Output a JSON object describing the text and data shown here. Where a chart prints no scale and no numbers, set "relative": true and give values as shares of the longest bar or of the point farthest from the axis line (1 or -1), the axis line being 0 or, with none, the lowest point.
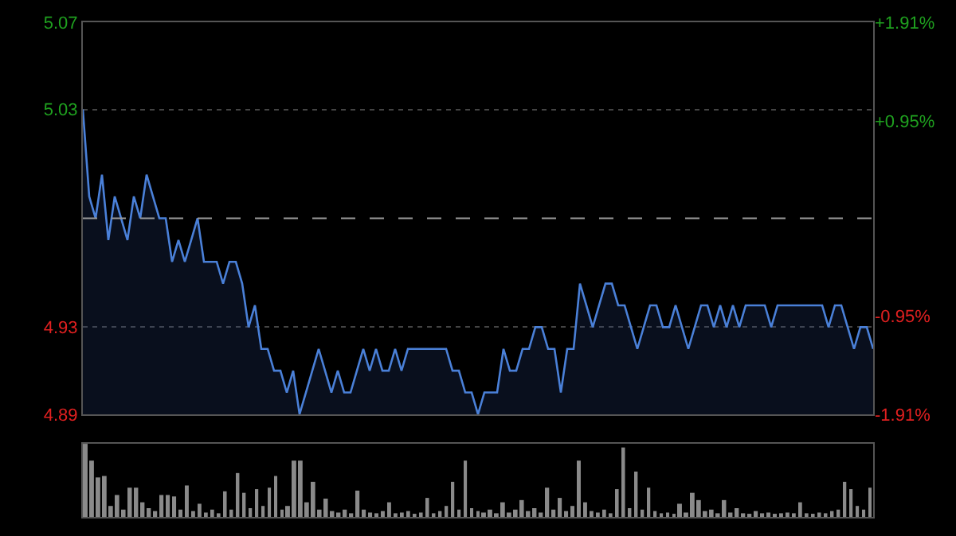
{
  "chart_data": [
    {
      "type": "area",
      "categories": [
        null,
        null,
        null,
        null,
        null,
        null,
        null,
        null,
        null,
        null,
        null,
        null,
        null,
        null,
        null,
        null,
        null,
        null,
        null,
        null,
        null,
        null,
        null,
        null,
        null,
        null,
        null,
        null,
        null,
        null,
        null,
        null,
        null,
        null,
        null,
        null,
        null,
        null,
        null,
        null,
        null,
        null,
        null,
        null,
        null,
        null,
        null,
        null,
        null,
        null,
        null,
        null,
        null,
        null,
        null,
        null,
        null,
        null,
        null,
        null,
        null,
        null,
        null,
        null,
        null,
        null,
        null,
        null,
        null,
        null,
        null,
        null,
        null,
        null,
        null,
        null,
        null,
        null,
        null,
        null,
        null,
        null,
        null,
        null,
        null,
        null,
        null,
        null,
        null,
        null,
        null,
        null,
        null,
        null,
        null,
        null,
        null,
        null,
        null,
        null,
        null,
        null,
        null,
        null,
        null,
        null,
        null,
        null,
        null,
        null,
        null,
        null,
        null,
        null,
        null,
        null,
        null,
        null,
        null,
        null,
        null,
        null,
        null,
        null,
        null
      ],
      "series": [
        {
          "color": "#4a80d8",
          "values": [
            5.03,
            4.99,
            4.98,
            5.0,
            4.97,
            4.99,
            4.98,
            4.97,
            4.99,
            4.98,
            5.0,
            4.99,
            4.98,
            4.98,
            4.96,
            4.97,
            4.96,
            4.97,
            4.98,
            4.96,
            4.96,
            4.96,
            4.95,
            4.96,
            4.96,
            4.95,
            4.93,
            4.94,
            4.92,
            4.92,
            4.91,
            4.91,
            4.9,
            4.91,
            4.89,
            4.9,
            4.91,
            4.92,
            4.91,
            4.9,
            4.91,
            4.9,
            4.9,
            4.91,
            4.92,
            4.91,
            4.92,
            4.91,
            4.91,
            4.92,
            4.91,
            4.92,
            4.92,
            4.92,
            4.92,
            4.92,
            4.92,
            4.92,
            4.91,
            4.91,
            4.9,
            4.9,
            4.89,
            4.9,
            4.9,
            4.9,
            4.92,
            4.91,
            4.91,
            4.92,
            4.92,
            4.93,
            4.93,
            4.92,
            4.92,
            4.9,
            4.92,
            4.92,
            4.95,
            4.94,
            4.93,
            4.94,
            4.95,
            4.95,
            4.94,
            4.94,
            4.93,
            4.92,
            4.93,
            4.94,
            4.94,
            4.93,
            4.93,
            4.94,
            4.93,
            4.92,
            4.93,
            4.94,
            4.94,
            4.93,
            4.94,
            4.93,
            4.94,
            4.93,
            4.94,
            4.94,
            4.94,
            4.94,
            4.93,
            4.94,
            4.94,
            4.94,
            4.94,
            4.94,
            4.94,
            4.94,
            4.94,
            4.93,
            4.94,
            4.94,
            4.93,
            4.92,
            4.93,
            4.93,
            4.92
          ]
        }
      ],
      "ylim": [
        4.89,
        5.07
      ],
      "yticks": [
        4.89,
        4.93,
        5.03,
        5.07
      ],
      "y2lim": [
        -1.91,
        1.91
      ],
      "y2ticks": [
        {
          "value": -1.91,
          "label": "-1.91%"
        },
        {
          "value": -0.95,
          "label": "-0.95%"
        },
        {
          "value": 0.95,
          "label": "+0.95%"
        },
        {
          "value": 1.91,
          "label": "+1.91%"
        }
      ],
      "ref_lines": [
        {
          "axis": "y",
          "value": 4.98,
          "color": "#9a9a9a",
          "line_style": "dashed"
        }
      ],
      "grid": "y",
      "legend": false
    },
    {
      "type": "bar",
      "relative": true,
      "categories": [
        null,
        null,
        null,
        null,
        null,
        null,
        null,
        null,
        null,
        null,
        null,
        null,
        null,
        null,
        null,
        null,
        null,
        null,
        null,
        null,
        null,
        null,
        null,
        null,
        null,
        null,
        null,
        null,
        null,
        null,
        null,
        null,
        null,
        null,
        null,
        null,
        null,
        null,
        null,
        null,
        null,
        null,
        null,
        null,
        null,
        null,
        null,
        null,
        null,
        null,
        null,
        null,
        null,
        null,
        null,
        null,
        null,
        null,
        null,
        null,
        null,
        null,
        null,
        null,
        null,
        null,
        null,
        null,
        null,
        null,
        null,
        null,
        null,
        null,
        null,
        null,
        null,
        null,
        null,
        null,
        null,
        null,
        null,
        null,
        null,
        null,
        null,
        null,
        null,
        null,
        null,
        null,
        null,
        null,
        null,
        null,
        null,
        null,
        null,
        null,
        null,
        null,
        null,
        null,
        null,
        null,
        null,
        null,
        null,
        null,
        null,
        null,
        null,
        null,
        null,
        null,
        null,
        null,
        null,
        null,
        null,
        null,
        null,
        null,
        null
      ],
      "color": "#8a8a8a",
      "values": [
        1.0,
        0.77,
        0.54,
        0.56,
        0.15,
        0.3,
        0.1,
        0.4,
        0.4,
        0.2,
        0.12,
        0.08,
        0.3,
        0.3,
        0.28,
        0.1,
        0.43,
        0.08,
        0.18,
        0.06,
        0.1,
        0.05,
        0.35,
        0.1,
        0.6,
        0.33,
        0.12,
        0.38,
        0.15,
        0.4,
        0.56,
        0.1,
        0.15,
        0.77,
        0.77,
        0.2,
        0.48,
        0.1,
        0.25,
        0.08,
        0.06,
        0.1,
        0.05,
        0.36,
        0.1,
        0.06,
        0.05,
        0.08,
        0.2,
        0.05,
        0.06,
        0.08,
        0.04,
        0.06,
        0.26,
        0.05,
        0.08,
        0.15,
        0.48,
        0.1,
        0.77,
        0.12,
        0.08,
        0.06,
        0.1,
        0.05,
        0.2,
        0.06,
        0.1,
        0.23,
        0.08,
        0.12,
        0.06,
        0.4,
        0.1,
        0.26,
        0.08,
        0.15,
        0.77,
        0.2,
        0.08,
        0.06,
        0.1,
        0.05,
        0.38,
        0.95,
        0.12,
        0.62,
        0.1,
        0.4,
        0.08,
        0.05,
        0.06,
        0.04,
        0.18,
        0.06,
        0.33,
        0.23,
        0.08,
        0.1,
        0.05,
        0.23,
        0.06,
        0.12,
        0.05,
        0.04,
        0.08,
        0.05,
        0.06,
        0.04,
        0.05,
        0.06,
        0.05,
        0.2,
        0.05,
        0.04,
        0.06,
        0.05,
        0.08,
        0.1,
        0.48,
        0.38,
        0.15,
        0.1,
        0.4
      ],
      "grid": false,
      "legend": false
    }
  ]
}
